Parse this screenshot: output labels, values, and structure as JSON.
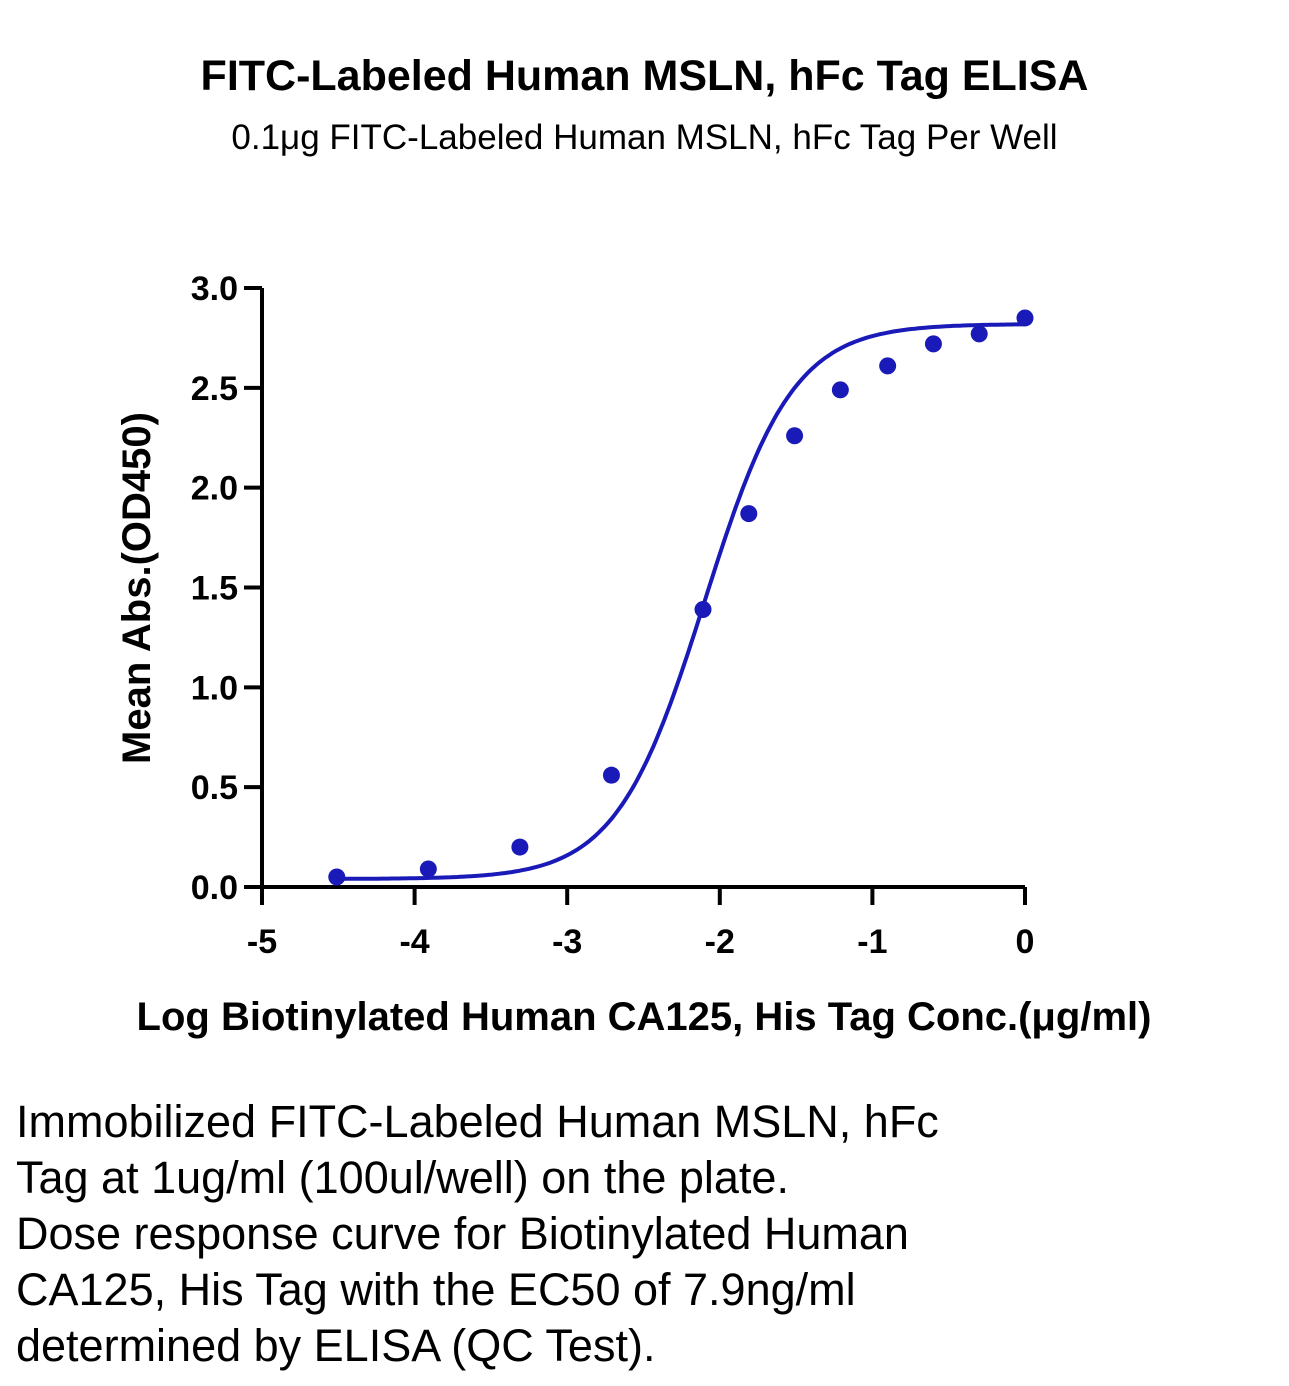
{
  "chart_data": {
    "type": "scatter",
    "title": "FITC-Labeled Human MSLN, hFc Tag ELISA",
    "subtitle": "0.1μg FITC-Labeled Human MSLN, hFc Tag Per Well",
    "xlabel": "Log Biotinylated Human CA125, His Tag Conc.(μg/ml)",
    "ylabel": "Mean Abs.(OD450)",
    "xlim": [
      -5,
      0
    ],
    "ylim": [
      0,
      3.0
    ],
    "x_ticks": [
      "-5",
      "-4",
      "-3",
      "-2",
      "-1",
      "0"
    ],
    "y_ticks": [
      "0.0",
      "0.5",
      "1.0",
      "1.5",
      "2.0",
      "2.5",
      "3.0"
    ],
    "color": "#1a1ab8",
    "grid": false,
    "series": [
      {
        "x": [
          -4.51,
          -3.91,
          -3.31,
          -2.71,
          -2.11,
          -1.81,
          -1.51,
          -1.21,
          -0.9,
          -0.6,
          -0.3,
          0.0
        ],
        "y": [
          0.05,
          0.09,
          0.2,
          0.56,
          1.39,
          1.87,
          2.26,
          2.49,
          2.61,
          2.72,
          2.77,
          2.85
        ]
      }
    ],
    "fit": {
      "bottom": 0.04,
      "top": 2.82,
      "log_ec50": -2.1,
      "hill_slope": 1.5
    }
  },
  "caption_lines": [
    "Immobilized FITC-Labeled Human MSLN, hFc",
    "Tag at 1ug/ml (100ul/well) on the plate.",
    "Dose response curve for Biotinylated Human",
    "CA125, His Tag with the EC50 of 7.9ng/ml",
    "determined by ELISA (QC Test)."
  ]
}
